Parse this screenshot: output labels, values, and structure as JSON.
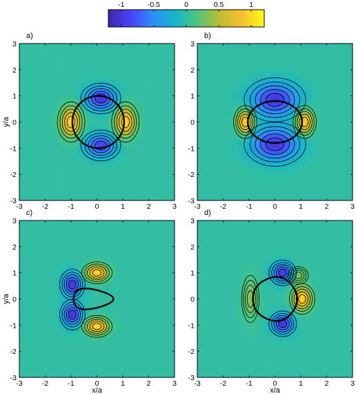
{
  "chart_data": [
    {
      "type": "heatmap",
      "panel_label": "a)",
      "xlim": [
        -3,
        3
      ],
      "ylim": [
        -3,
        3
      ],
      "x_ticks": [
        -3,
        -2,
        -1,
        0,
        1,
        2,
        3
      ],
      "y_ticks": [
        -3,
        -2,
        -1,
        0,
        1,
        2,
        3
      ],
      "xlabel": "",
      "ylabel": "y/a",
      "contour_lines": true,
      "boundary": {
        "shape": "circle",
        "radius": 1
      },
      "lobes": [
        {
          "x": 0.15,
          "y": 0.9,
          "value": -1.0,
          "sx": 0.55,
          "sy": 0.42
        },
        {
          "x": 0.15,
          "y": -0.9,
          "value": -0.9,
          "sx": 0.55,
          "sy": 0.42
        },
        {
          "x": -1.0,
          "y": 0.0,
          "value": 1.0,
          "sx": 0.38,
          "sy": 0.55
        },
        {
          "x": 1.1,
          "y": 0.0,
          "value": 1.0,
          "sx": 0.38,
          "sy": 0.55
        }
      ]
    },
    {
      "type": "heatmap",
      "panel_label": "b)",
      "xlim": [
        -3,
        3
      ],
      "ylim": [
        -3,
        3
      ],
      "x_ticks": [
        -3,
        -2,
        -1,
        0,
        1,
        2,
        3
      ],
      "y_ticks": [
        -3,
        -2,
        -1,
        0,
        1,
        2,
        3
      ],
      "xlabel": "",
      "ylabel": "",
      "contour_lines": true,
      "boundary": {
        "shape": "ellipse",
        "rx": 1.05,
        "ry": 0.8
      },
      "lobes": [
        {
          "x": 0.0,
          "y": 0.85,
          "value": -1.0,
          "sx": 0.85,
          "sy": 0.6
        },
        {
          "x": 0.0,
          "y": -0.85,
          "value": -1.0,
          "sx": 0.85,
          "sy": 0.6
        },
        {
          "x": -1.15,
          "y": 0.0,
          "value": 1.0,
          "sx": 0.32,
          "sy": 0.45
        },
        {
          "x": 1.15,
          "y": 0.0,
          "value": 1.0,
          "sx": 0.32,
          "sy": 0.45
        }
      ]
    },
    {
      "type": "heatmap",
      "panel_label": "c)",
      "xlim": [
        -3,
        3
      ],
      "ylim": [
        -3,
        3
      ],
      "x_ticks": [
        -3,
        -2,
        -1,
        0,
        1,
        2,
        3
      ],
      "y_ticks": [
        -3,
        -2,
        -1,
        0,
        1,
        2,
        3
      ],
      "xlabel": "x/a",
      "ylabel": "y/a",
      "contour_lines": true,
      "boundary": {
        "shape": "rounded-triangle",
        "points": [
          [
            -0.9,
            0.6
          ],
          [
            -0.9,
            -0.6
          ],
          [
            1.15,
            0.0
          ]
        ]
      },
      "lobes": [
        {
          "x": -0.95,
          "y": 0.55,
          "value": -1.0,
          "sx": 0.35,
          "sy": 0.42
        },
        {
          "x": -0.95,
          "y": -0.6,
          "value": -1.0,
          "sx": 0.35,
          "sy": 0.42
        },
        {
          "x": 0.0,
          "y": 1.0,
          "value": 1.0,
          "sx": 0.42,
          "sy": 0.3
        },
        {
          "x": 0.0,
          "y": -1.05,
          "value": 1.0,
          "sx": 0.42,
          "sy": 0.3
        }
      ]
    },
    {
      "type": "heatmap",
      "panel_label": "d)",
      "xlim": [
        -3,
        3
      ],
      "ylim": [
        -3,
        3
      ],
      "x_ticks": [
        -3,
        -2,
        -1,
        0,
        1,
        2,
        3
      ],
      "y_ticks": [
        -3,
        -2,
        -1,
        0,
        1,
        2,
        3
      ],
      "xlabel": "x/a",
      "ylabel": "",
      "contour_lines": true,
      "boundary": {
        "shape": "rounded-pentagon",
        "points": [
          [
            0.3,
            1.0
          ],
          [
            1.05,
            0.0
          ],
          [
            0.3,
            -1.0
          ],
          [
            -0.85,
            -0.55
          ],
          [
            -0.85,
            0.55
          ]
        ]
      },
      "lobes": [
        {
          "x": 0.3,
          "y": 1.0,
          "value": -1.0,
          "sx": 0.38,
          "sy": 0.35
        },
        {
          "x": 0.3,
          "y": -0.95,
          "value": -1.0,
          "sx": 0.38,
          "sy": 0.35
        },
        {
          "x": 1.05,
          "y": 0.0,
          "value": 1.0,
          "sx": 0.35,
          "sy": 0.42
        },
        {
          "x": -0.95,
          "y": 0.0,
          "value": 0.35,
          "sx": 0.3,
          "sy": 0.8
        },
        {
          "x": 0.9,
          "y": 0.9,
          "value": 0.35,
          "sx": 0.35,
          "sy": 0.3
        }
      ]
    }
  ],
  "colorbar": {
    "ticks": [
      -1,
      -0.5,
      0,
      0.5,
      1
    ],
    "tick_labels": [
      "-1",
      "-0.5",
      "0",
      "0.5",
      "1"
    ],
    "range": [
      -1.2,
      1.2
    ],
    "colormap": [
      "#3e26a8",
      "#4743f8",
      "#2d8ef5",
      "#14b5cc",
      "#4fc67a",
      "#bebc32",
      "#f9c031",
      "#f9fb15"
    ]
  }
}
